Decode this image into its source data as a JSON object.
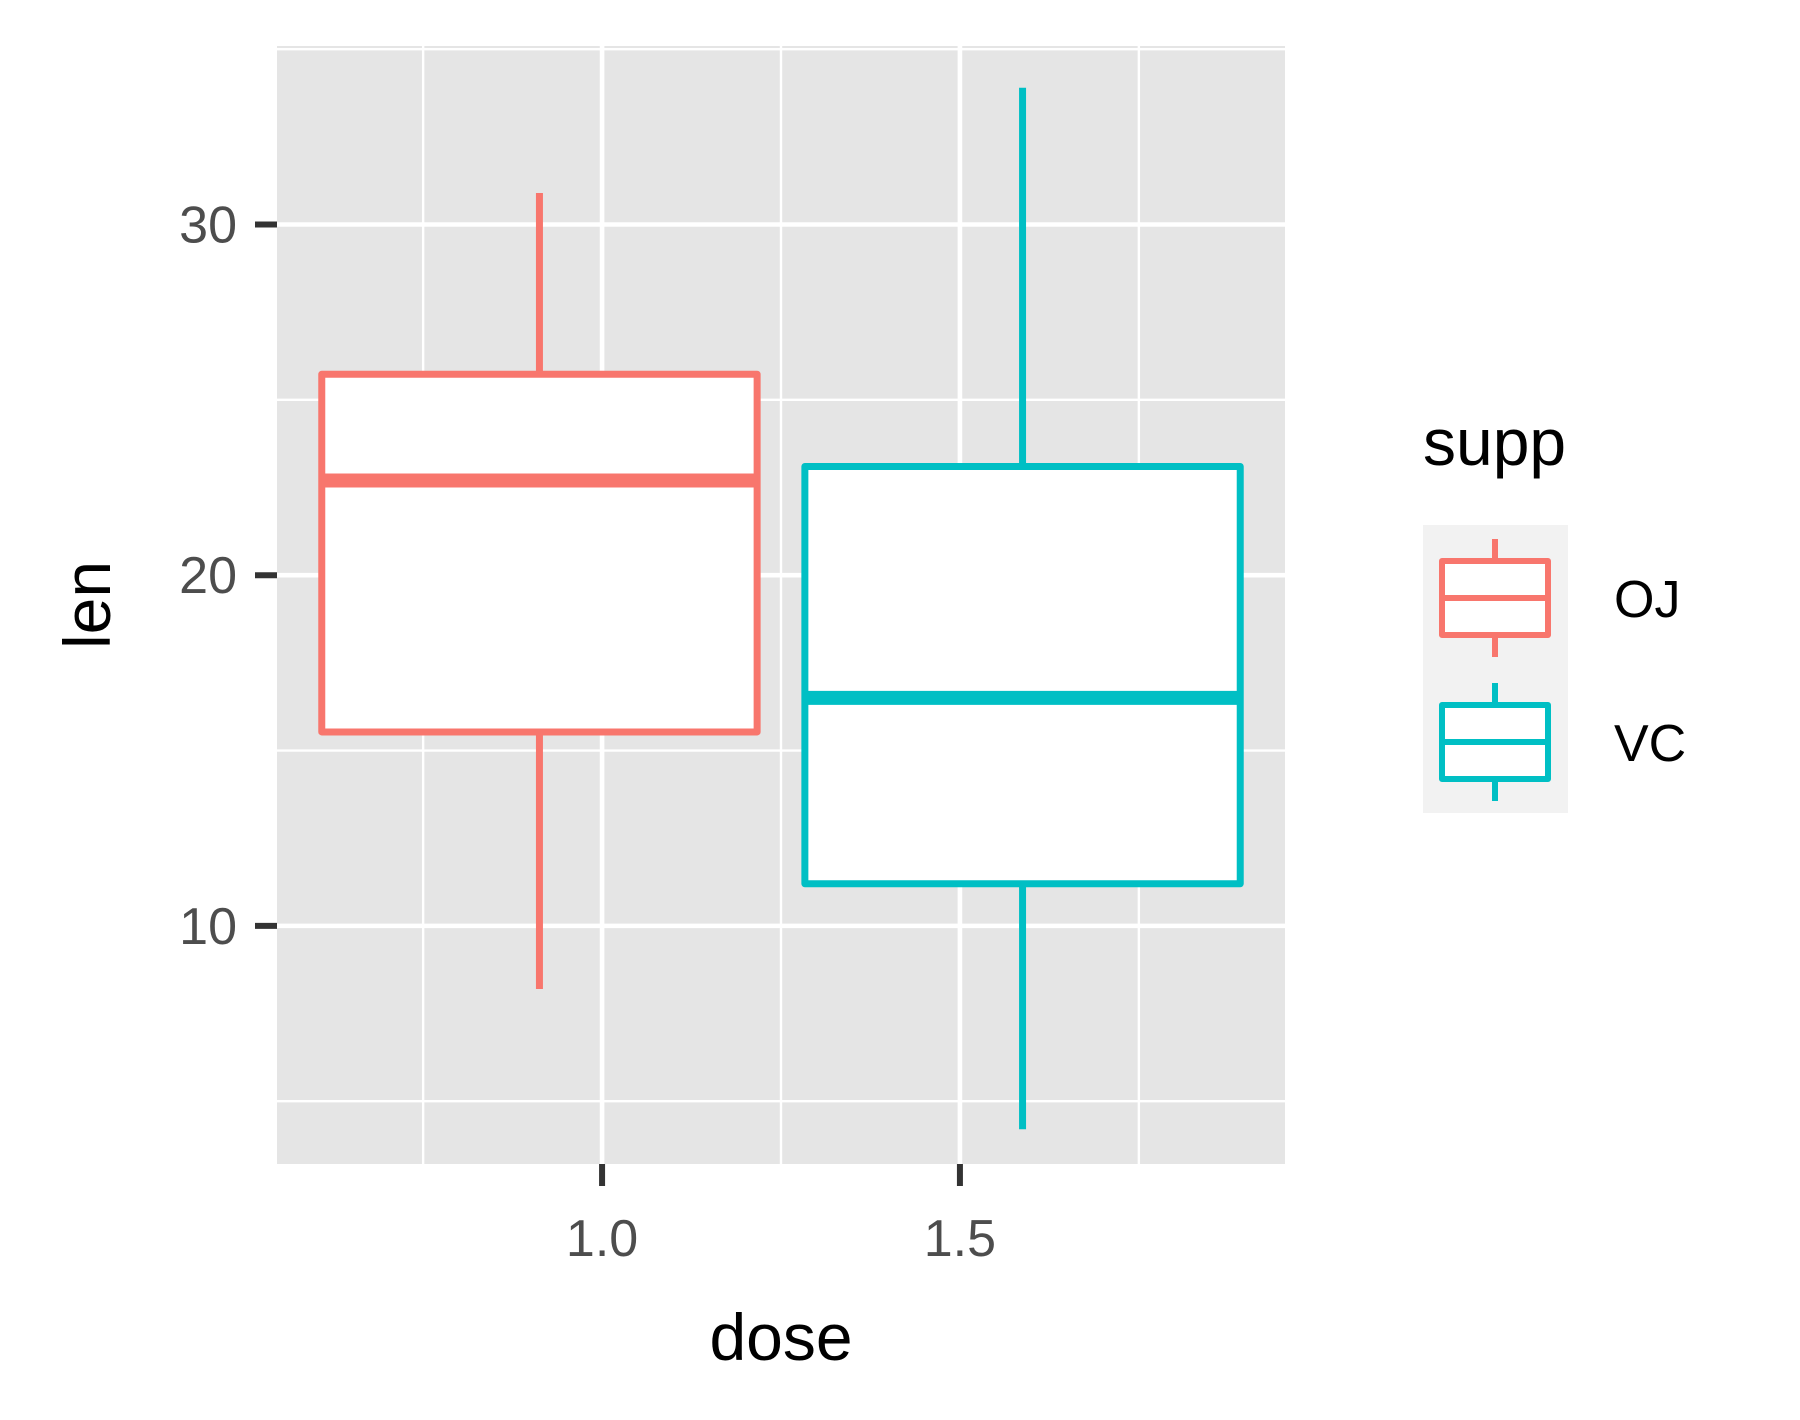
{
  "chart_data": {
    "type": "boxplot",
    "xlabel": "dose",
    "ylabel": "len",
    "xlim": [
      0.5458,
      1.9542
    ],
    "ylim": [
      3.21,
      35.09
    ],
    "x_ticks": [
      1.0,
      1.5
    ],
    "x_tick_labels": [
      "1.0",
      "1.5"
    ],
    "x_minor_breaks": [
      0.75,
      1.25,
      1.75
    ],
    "y_ticks": [
      10,
      20,
      30
    ],
    "y_tick_labels": [
      "10",
      "20",
      "30"
    ],
    "y_minor_breaks": [
      5,
      15,
      25,
      35
    ],
    "grid": true,
    "legend": {
      "title": "supp",
      "position": "right",
      "entries": [
        "OJ",
        "VC"
      ]
    },
    "series": [
      {
        "name": "OJ",
        "color": "#F8766D",
        "x_center": 0.9125,
        "box_width": 0.6083,
        "whisker_low": 8.2,
        "q1": 15.53,
        "median": 22.7,
        "q3": 25.73,
        "whisker_high": 30.9
      },
      {
        "name": "VC",
        "color": "#00BFC4",
        "x_center": 1.5875,
        "box_width": 0.6083,
        "whisker_low": 4.2,
        "q1": 11.2,
        "median": 16.5,
        "q3": 23.1,
        "whisker_high": 33.9
      }
    ]
  },
  "style": {
    "panel_background": "#E5E5E5",
    "legend_key_background": "#F2F2F2",
    "grid_color": "#FFFFFF",
    "tick_color": "#333333"
  }
}
